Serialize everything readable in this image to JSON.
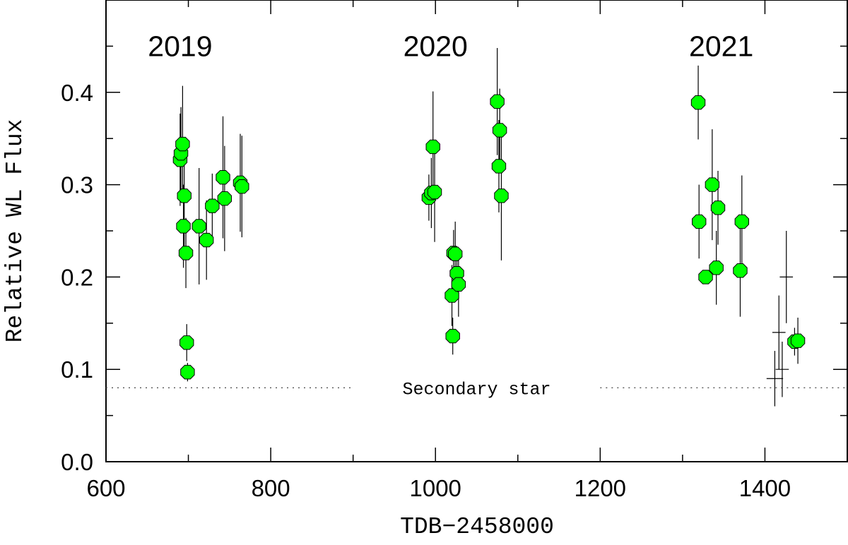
{
  "chart_data": {
    "type": "scatter",
    "xlabel": "TDB−2458000",
    "ylabel": "Relative WL Flux",
    "xlim": [
      600,
      1500
    ],
    "ylim": [
      0.0,
      0.5
    ],
    "x_ticks": [
      600,
      800,
      1000,
      1200,
      1400
    ],
    "y_ticks": [
      0.0,
      0.1,
      0.2,
      0.3,
      0.4
    ],
    "x_tick_labels": [
      "600",
      "800",
      "1000",
      "1200",
      "1400"
    ],
    "y_tick_labels": [
      "0.0",
      "0.1",
      "0.2",
      "0.3",
      "0.4"
    ],
    "grid": false,
    "annotations": [
      {
        "text": "2019",
        "x": 690,
        "y": 0.45
      },
      {
        "text": "2020",
        "x": 1000,
        "y": 0.45
      },
      {
        "text": "2021",
        "x": 1347,
        "y": 0.45
      }
    ],
    "reference_line": {
      "label": "Secondary star",
      "y": 0.08,
      "style": "dotted",
      "x_start": 600,
      "x_end": 1500,
      "label_gap": [
        900,
        1200
      ]
    },
    "series": [
      {
        "marker": "filled-octagon",
        "color": "#00ff00",
        "points": [
          {
            "x": 690,
            "y": 0.327,
            "yerr": 0.05
          },
          {
            "x": 691,
            "y": 0.334,
            "yerr": 0.05
          },
          {
            "x": 693,
            "y": 0.344,
            "yerr": 0.063
          },
          {
            "x": 694,
            "y": 0.255,
            "yerr": 0.045
          },
          {
            "x": 695,
            "y": 0.288,
            "yerr": 0.055
          },
          {
            "x": 697,
            "y": 0.226,
            "yerr": 0.038
          },
          {
            "x": 698,
            "y": 0.129,
            "yerr": 0.02
          },
          {
            "x": 699,
            "y": 0.097,
            "yerr": 0.01
          },
          {
            "x": 713,
            "y": 0.255,
            "yerr": 0.063
          },
          {
            "x": 722,
            "y": 0.24,
            "yerr": 0.043
          },
          {
            "x": 729,
            "y": 0.277,
            "yerr": 0.035
          },
          {
            "x": 742,
            "y": 0.308,
            "yerr": 0.066
          },
          {
            "x": 744,
            "y": 0.285,
            "yerr": 0.057
          },
          {
            "x": 763,
            "y": 0.302,
            "yerr": 0.053
          },
          {
            "x": 765,
            "y": 0.298,
            "yerr": 0.055
          },
          {
            "x": 992,
            "y": 0.286,
            "yerr": 0.025
          },
          {
            "x": 995,
            "y": 0.291,
            "yerr": 0.038
          },
          {
            "x": 997,
            "y": 0.341,
            "yerr": 0.06
          },
          {
            "x": 999,
            "y": 0.292,
            "yerr": 0.054
          },
          {
            "x": 1020,
            "y": 0.18,
            "yerr": 0.033
          },
          {
            "x": 1021,
            "y": 0.136,
            "yerr": 0.02
          },
          {
            "x": 1022,
            "y": 0.226,
            "yerr": 0.025
          },
          {
            "x": 1024,
            "y": 0.225,
            "yerr": 0.035
          },
          {
            "x": 1026,
            "y": 0.204,
            "yerr": 0.028
          },
          {
            "x": 1028,
            "y": 0.192,
            "yerr": 0.035
          },
          {
            "x": 1075,
            "y": 0.39,
            "yerr": 0.058
          },
          {
            "x": 1077,
            "y": 0.32,
            "yerr": 0.05
          },
          {
            "x": 1078,
            "y": 0.359,
            "yerr": 0.045
          },
          {
            "x": 1080,
            "y": 0.288,
            "yerr": 0.07
          },
          {
            "x": 1319,
            "y": 0.389,
            "yerr": 0.04
          },
          {
            "x": 1320,
            "y": 0.26,
            "yerr": 0.04
          },
          {
            "x": 1328,
            "y": 0.2,
            "yerr": 0.005
          },
          {
            "x": 1336,
            "y": 0.3,
            "yerr": 0.06
          },
          {
            "x": 1341,
            "y": 0.21,
            "yerr": 0.04
          },
          {
            "x": 1343,
            "y": 0.275,
            "yerr": 0.04
          },
          {
            "x": 1370,
            "y": 0.207,
            "yerr": 0.05
          },
          {
            "x": 1372,
            "y": 0.26,
            "yerr": 0.05
          },
          {
            "x": 1436,
            "y": 0.13,
            "yerr": 0.015
          },
          {
            "x": 1440,
            "y": 0.131,
            "yerr": 0.025
          }
        ]
      },
      {
        "marker": "cross",
        "color": "#000000",
        "points": [
          {
            "x": 1412,
            "y": 0.09,
            "xerr": 10,
            "yerr": 0.03
          },
          {
            "x": 1417,
            "y": 0.14,
            "xerr": 8,
            "yerr": 0.04
          },
          {
            "x": 1421,
            "y": 0.1,
            "xerr": 8,
            "yerr": 0.03
          },
          {
            "x": 1426,
            "y": 0.2,
            "xerr": 8,
            "yerr": 0.05
          }
        ]
      }
    ]
  }
}
